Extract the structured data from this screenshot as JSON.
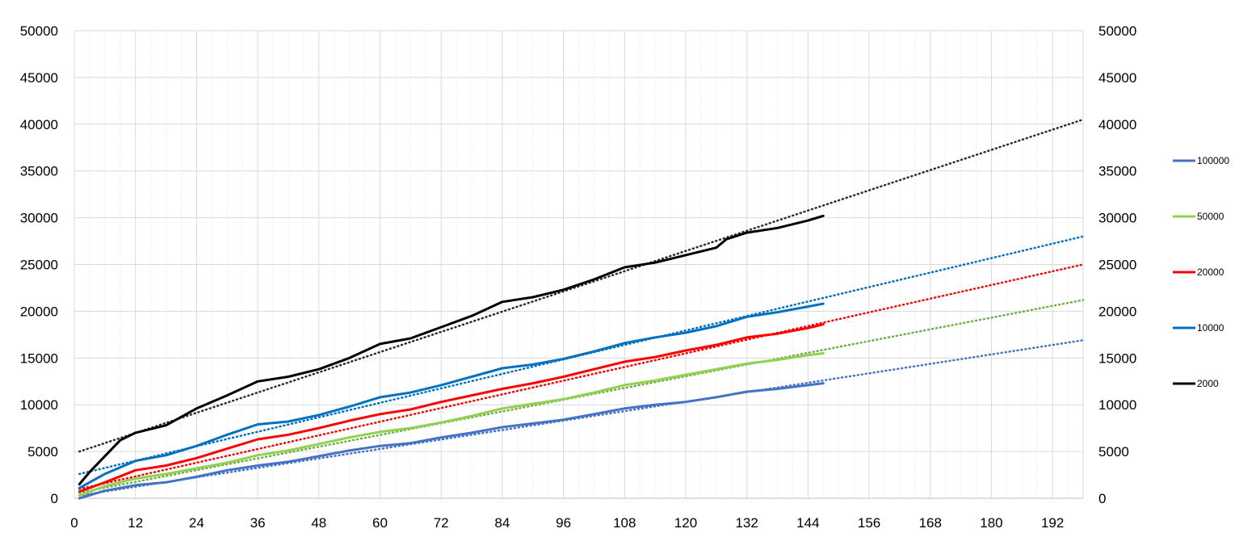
{
  "chart_data": {
    "type": "line",
    "title": "",
    "xlabel": "",
    "ylabel": "",
    "xlim": [
      0,
      198
    ],
    "ylim": [
      0,
      50000
    ],
    "x_ticks": [
      "0",
      "12",
      "24",
      "36",
      "48",
      "60",
      "72",
      "84",
      "96",
      "108",
      "120",
      "132",
      "144",
      "156",
      "168",
      "180",
      "192"
    ],
    "y_ticks_left": [
      "0",
      "5000",
      "10000",
      "15000",
      "20000",
      "25000",
      "30000",
      "35000",
      "40000",
      "45000",
      "50000"
    ],
    "y_ticks_right": [
      "0",
      "5000",
      "10000",
      "15000",
      "20000",
      "25000",
      "30000",
      "35000",
      "40000",
      "45000",
      "50000"
    ],
    "grid": true,
    "legend_position": "right",
    "series": [
      {
        "name": "100000",
        "color": "#4472C4",
        "trend_color": "#4472C4",
        "trendline": {
          "x": [
            1,
            198
          ],
          "y": [
            300,
            16900
          ]
        },
        "x": [
          1,
          6,
          12,
          18,
          24,
          30,
          36,
          42,
          48,
          54,
          60,
          66,
          72,
          78,
          84,
          90,
          96,
          102,
          108,
          114,
          120,
          126,
          132,
          138,
          144,
          147
        ],
        "y": [
          0,
          800,
          1400,
          1700,
          2300,
          3000,
          3500,
          3900,
          4500,
          5100,
          5600,
          5900,
          6500,
          7000,
          7600,
          8000,
          8400,
          9000,
          9600,
          10000,
          10300,
          10800,
          11400,
          11700,
          12100,
          12300
        ]
      },
      {
        "name": "50000",
        "color": "#92D050",
        "trend_color": "#70AD47",
        "trendline": {
          "x": [
            1,
            198
          ],
          "y": [
            600,
            21200
          ]
        },
        "x": [
          1,
          6,
          12,
          18,
          24,
          30,
          36,
          42,
          48,
          54,
          60,
          66,
          72,
          78,
          84,
          90,
          96,
          102,
          108,
          114,
          120,
          126,
          132,
          138,
          144,
          147
        ],
        "y": [
          300,
          1300,
          2100,
          2600,
          3200,
          3800,
          4600,
          5100,
          5800,
          6500,
          7100,
          7500,
          8100,
          8800,
          9600,
          10100,
          10600,
          11300,
          12100,
          12600,
          13200,
          13800,
          14400,
          14800,
          15300,
          15500
        ]
      },
      {
        "name": "20000",
        "color": "#FF0000",
        "trend_color": "#FF0000",
        "trendline": {
          "x": [
            1,
            198
          ],
          "y": [
            1000,
            25000
          ]
        },
        "x": [
          1,
          6,
          12,
          18,
          24,
          30,
          36,
          42,
          48,
          54,
          60,
          66,
          72,
          78,
          84,
          90,
          96,
          102,
          108,
          114,
          120,
          126,
          132,
          138,
          144,
          147
        ],
        "y": [
          700,
          1700,
          3000,
          3500,
          4300,
          5300,
          6300,
          6800,
          7500,
          8300,
          9000,
          9500,
          10300,
          11000,
          11700,
          12300,
          13000,
          13800,
          14600,
          15100,
          15800,
          16400,
          17200,
          17600,
          18200,
          18600
        ]
      },
      {
        "name": "10000",
        "color": "#0070C0",
        "trend_color": "#0070C0",
        "trendline": {
          "x": [
            1,
            198
          ],
          "y": [
            2600,
            28000
          ]
        },
        "x": [
          1,
          6,
          12,
          18,
          24,
          30,
          36,
          42,
          48,
          54,
          60,
          66,
          72,
          78,
          84,
          90,
          96,
          102,
          108,
          114,
          120,
          126,
          132,
          138,
          144,
          147
        ],
        "y": [
          1100,
          2600,
          4000,
          4600,
          5600,
          6800,
          7900,
          8200,
          8900,
          9800,
          10800,
          11300,
          12100,
          13000,
          13900,
          14300,
          14900,
          15700,
          16600,
          17200,
          17700,
          18400,
          19400,
          19900,
          20500,
          20800
        ]
      },
      {
        "name": "2000",
        "color": "#000000",
        "trend_color": "#1F2D40",
        "trendline": {
          "x": [
            1,
            198
          ],
          "y": [
            5000,
            40500
          ]
        },
        "x": [
          1,
          3,
          6,
          9,
          12,
          18,
          24,
          30,
          36,
          42,
          48,
          54,
          60,
          66,
          72,
          78,
          84,
          90,
          96,
          102,
          108,
          114,
          120,
          126,
          128,
          132,
          138,
          144,
          147
        ],
        "y": [
          1500,
          2800,
          4500,
          6200,
          7000,
          7800,
          9600,
          11000,
          12500,
          13000,
          13800,
          15000,
          16500,
          17100,
          18300,
          19500,
          21000,
          21500,
          22300,
          23400,
          24700,
          25200,
          26000,
          26800,
          27700,
          28400,
          28900,
          29700,
          30200
        ]
      }
    ]
  }
}
